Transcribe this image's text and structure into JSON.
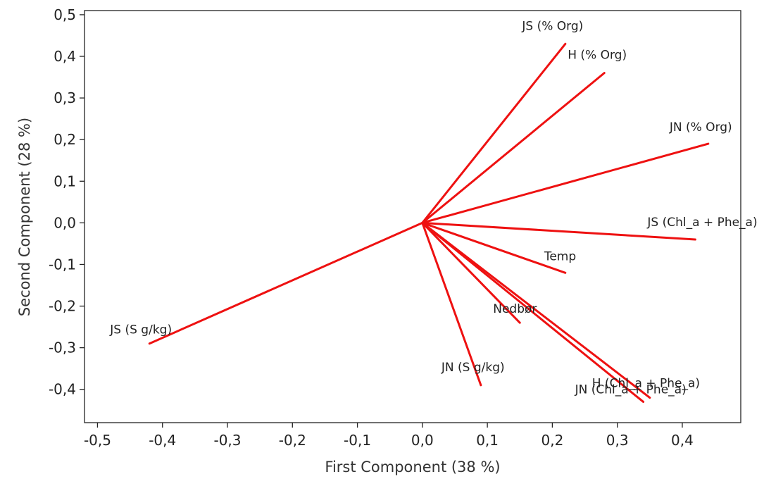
{
  "chart_data": {
    "type": "scatter",
    "subtype": "pca-loading-biplot",
    "title": "",
    "xlabel": "First Component (38 %)",
    "ylabel": "Second Component (28 %)",
    "xlim": [
      -0.52,
      0.49
    ],
    "ylim": [
      -0.48,
      0.51
    ],
    "grid": false,
    "legend": "none",
    "vector_color": "#ee1111",
    "xticks": [
      -0.5,
      -0.4,
      -0.3,
      -0.2,
      -0.1,
      0.0,
      0.1,
      0.2,
      0.3,
      0.4
    ],
    "xtick_labels": [
      "-0,5",
      "-0,4",
      "-0,3",
      "-0,2",
      "-0,1",
      "0,0",
      "0,1",
      "0,2",
      "0,3",
      "0,4"
    ],
    "yticks": [
      -0.4,
      -0.3,
      -0.2,
      -0.1,
      0.0,
      0.1,
      0.2,
      0.3,
      0.4,
      0.5
    ],
    "ytick_labels": [
      "-0,4",
      "-0,3",
      "-0,2",
      "-0,1",
      "0,0",
      "0,1",
      "0,2",
      "0,3",
      "0,4",
      "0,5"
    ],
    "vectors": [
      {
        "name": "JS (% Org)",
        "x": 0.22,
        "y": 0.43
      },
      {
        "name": "H (% Org)",
        "x": 0.28,
        "y": 0.36
      },
      {
        "name": "JN (% Org)",
        "x": 0.44,
        "y": 0.19
      },
      {
        "name": "JS (Chl_a + Phe_a)",
        "x": 0.42,
        "y": -0.04
      },
      {
        "name": "Temp",
        "x": 0.22,
        "y": -0.12
      },
      {
        "name": "Nedbør",
        "x": 0.15,
        "y": -0.24
      },
      {
        "name": "JN (S g/kg)",
        "x": 0.09,
        "y": -0.39
      },
      {
        "name": "H (Chl_a + Phe_a)",
        "x": 0.35,
        "y": -0.42
      },
      {
        "name": "JN (Chl_a + Phe_a)",
        "x": 0.34,
        "y": -0.43
      },
      {
        "name": "JS (S g/kg)",
        "x": -0.42,
        "y": -0.29
      }
    ]
  }
}
